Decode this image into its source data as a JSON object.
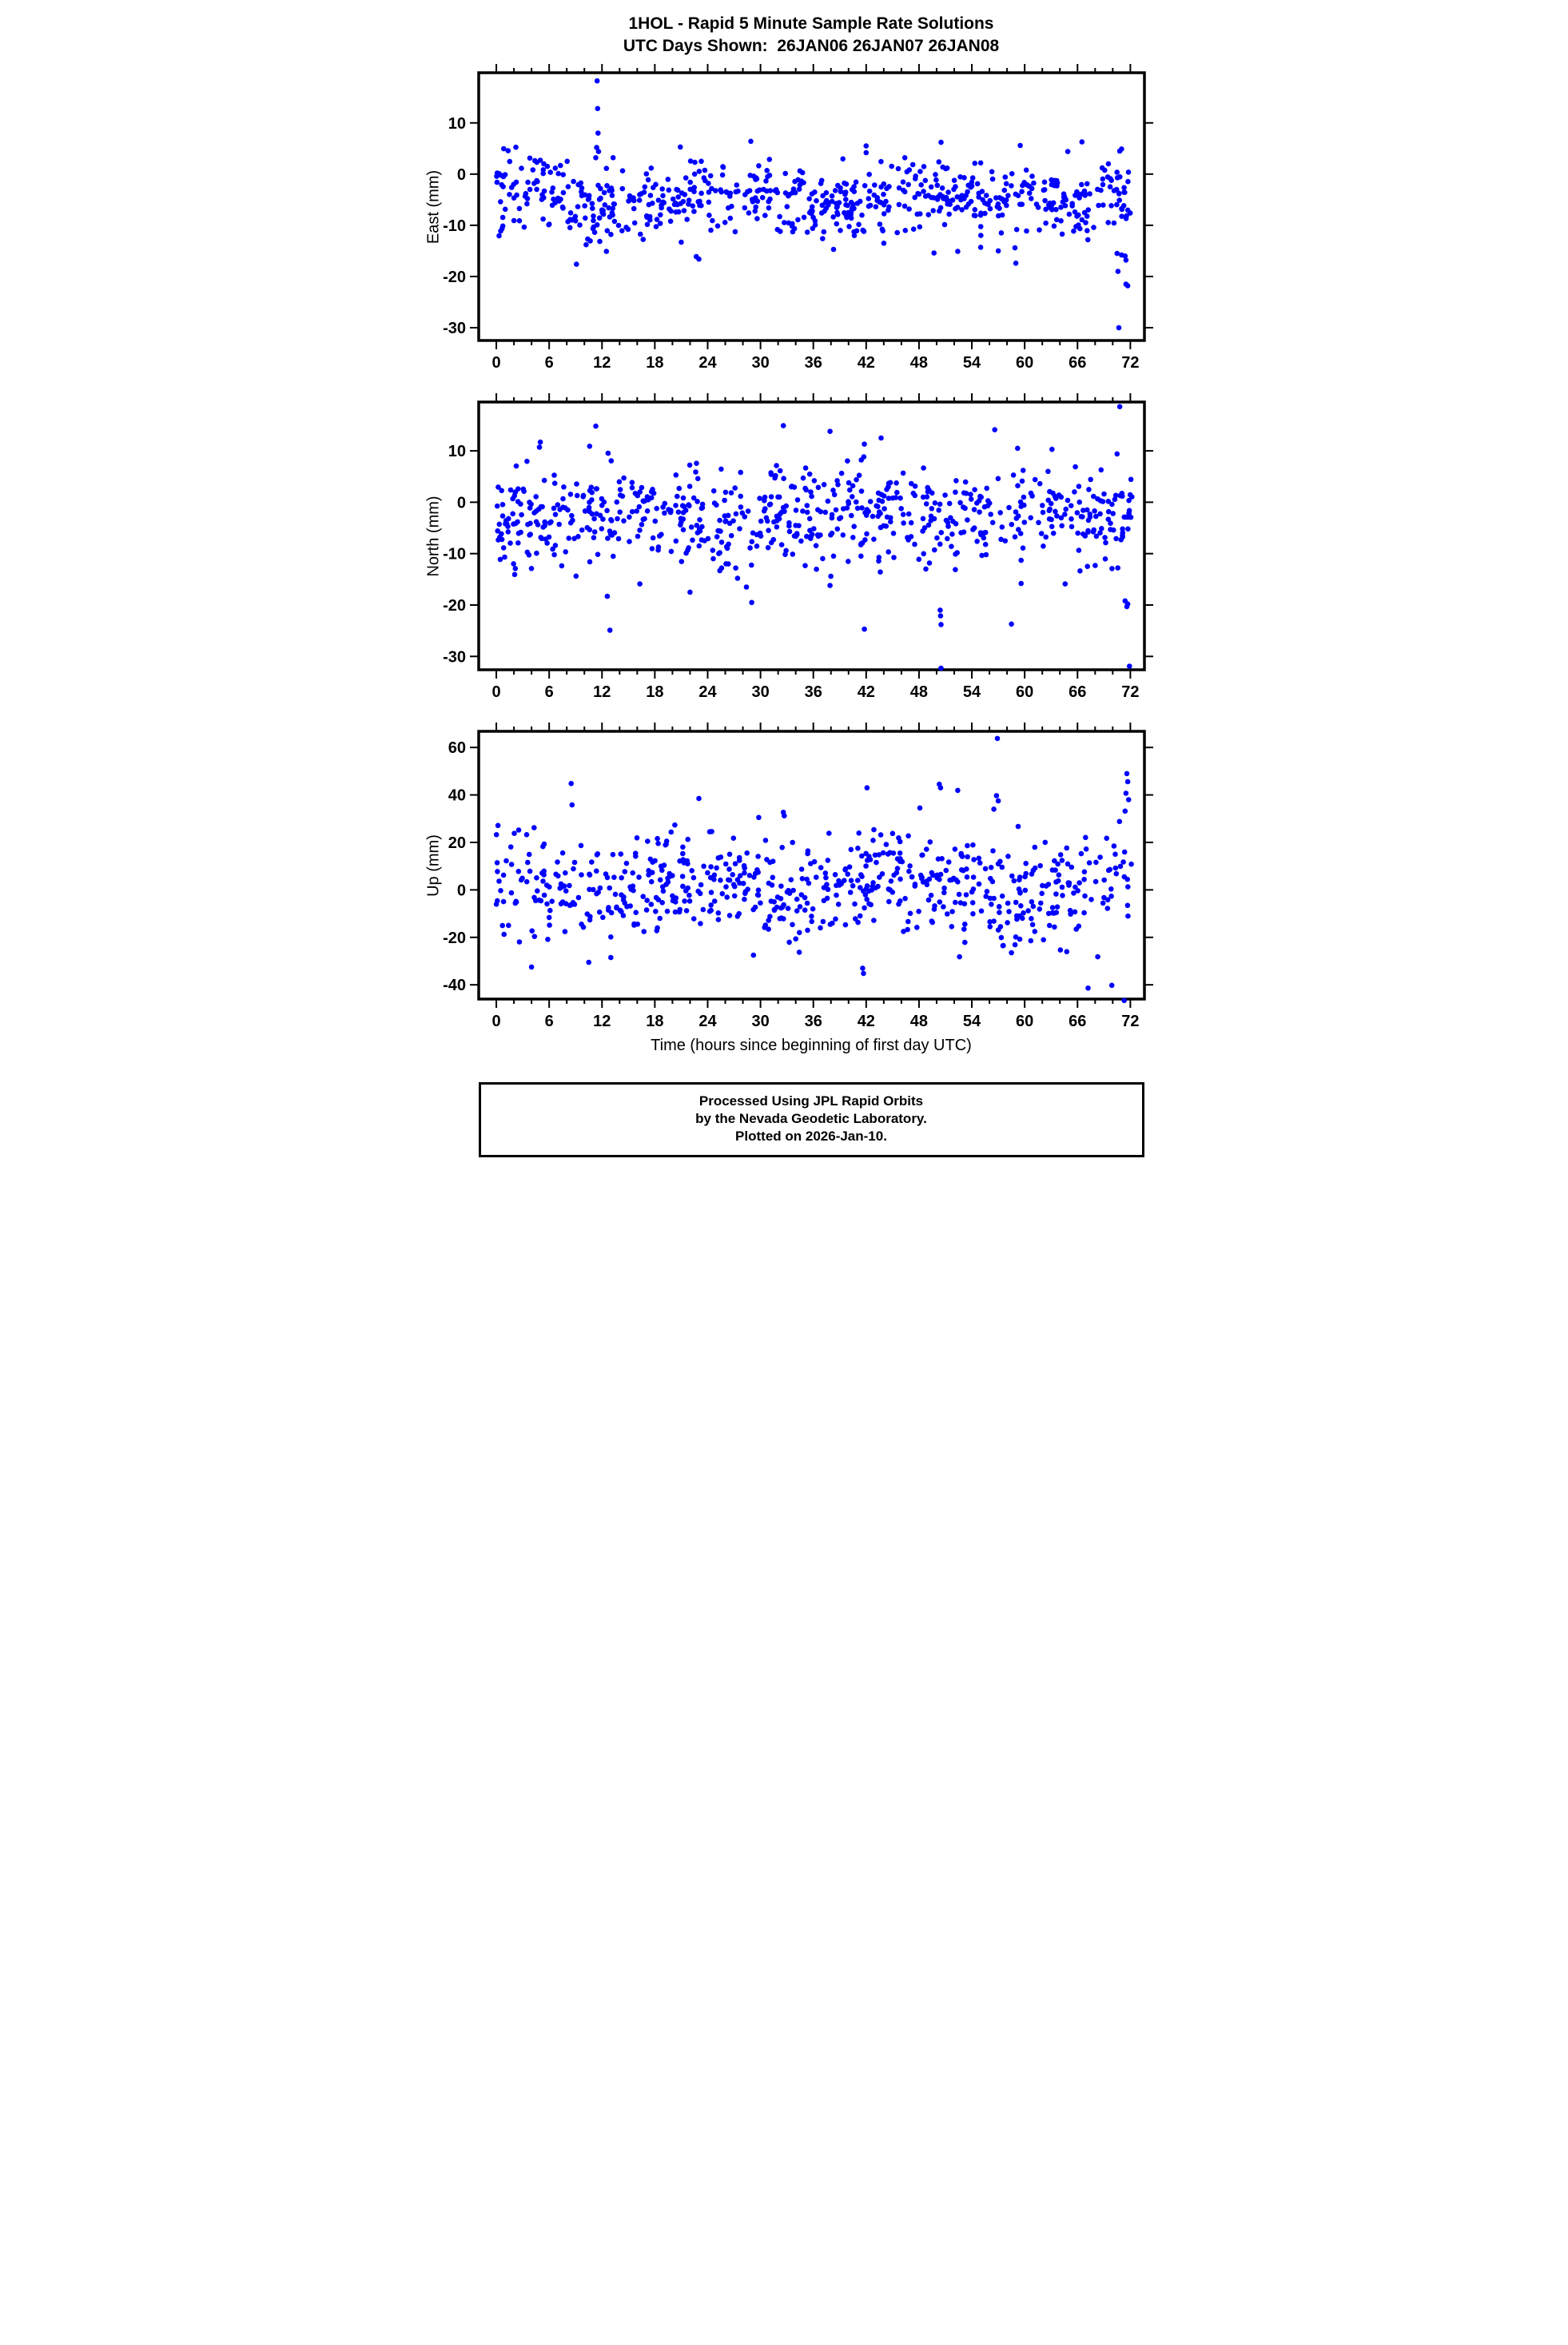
{
  "header": {
    "title": "1HOL - Rapid 5 Minute Sample Rate Solutions",
    "subtitle": "UTC Days Shown:  26JAN06 26JAN07 26JAN08"
  },
  "x_axis": {
    "label": "Time (hours since beginning of first day UTC)",
    "min": -2,
    "max": 73.6,
    "major_ticks": [
      0,
      6,
      12,
      18,
      24,
      30,
      36,
      42,
      48,
      54,
      60,
      66,
      72
    ],
    "minor_step": 2,
    "minor_start": 0,
    "minor_end": 72
  },
  "style": {
    "marker_color": "#0000ff",
    "marker_radius": 3.3,
    "axis_color": "#000000",
    "background": "#ffffff"
  },
  "chart_data": [
    {
      "type": "scatter",
      "name": "east",
      "ylabel": "East (mm)",
      "ylim": [
        -32.5,
        19.8
      ],
      "yticks": [
        10,
        0,
        -10,
        -20,
        -30
      ],
      "cloud": {
        "n": 660,
        "seed": 7,
        "x_start": 0,
        "x_span": 72.2,
        "mean": -4.8,
        "sd": 3.5,
        "clip": [
          -13.5,
          6.5
        ],
        "wave": {
          "amp": 1.6,
          "period": 24,
          "phase": 1.2
        }
      },
      "outliers": [
        [
          0.1,
          0.2
        ],
        [
          0.3,
          0.1
        ],
        [
          0.5,
          -0.2
        ],
        [
          0.8,
          -0.5
        ],
        [
          1.0,
          -0.1
        ],
        [
          4.6,
          2.3
        ],
        [
          5.0,
          2.7
        ],
        [
          5.4,
          2.0
        ],
        [
          5.8,
          1.5
        ],
        [
          11.45,
          18.2
        ],
        [
          11.5,
          12.8
        ],
        [
          11.55,
          8.0
        ],
        [
          11.4,
          5.2
        ],
        [
          11.6,
          4.4
        ],
        [
          11.3,
          3.2
        ],
        [
          9.1,
          -17.6
        ],
        [
          10.2,
          -13.8
        ],
        [
          12.5,
          -15.1
        ],
        [
          20.9,
          5.3
        ],
        [
          28.9,
          6.4
        ],
        [
          42.0,
          5.5
        ],
        [
          50.5,
          6.2
        ],
        [
          59.5,
          5.6
        ],
        [
          66.5,
          6.3
        ],
        [
          71.0,
          4.9
        ],
        [
          70.8,
          4.5
        ],
        [
          64.9,
          4.4
        ],
        [
          21.0,
          -13.3
        ],
        [
          22.7,
          -16.1
        ],
        [
          23.0,
          -16.6
        ],
        [
          38.3,
          -14.7
        ],
        [
          44.0,
          -13.5
        ],
        [
          49.7,
          -15.4
        ],
        [
          52.4,
          -15.1
        ],
        [
          55.0,
          -14.3
        ],
        [
          57.0,
          -15.0
        ],
        [
          58.9,
          -14.4
        ],
        [
          59.0,
          -17.4
        ],
        [
          70.5,
          -15.5
        ],
        [
          71.0,
          -15.8
        ],
        [
          71.4,
          -16.0
        ],
        [
          71.5,
          -16.8
        ],
        [
          70.6,
          -19.0
        ],
        [
          71.5,
          -21.5
        ],
        [
          71.7,
          -21.8
        ],
        [
          70.7,
          -30.0
        ]
      ]
    },
    {
      "type": "scatter",
      "name": "north",
      "ylabel": "North (mm)",
      "ylim": [
        -32.6,
        19.5
      ],
      "yticks": [
        10,
        0,
        -10,
        -20,
        -30
      ],
      "cloud": {
        "n": 680,
        "seed": 13,
        "x_start": 0,
        "x_span": 72.2,
        "mean": -3.0,
        "sd": 4.8,
        "clip": [
          -15.2,
          9.6
        ],
        "wave": {
          "amp": 1.4,
          "period": 24,
          "phase": 4.0
        }
      },
      "outliers": [
        [
          70.8,
          18.6
        ],
        [
          11.3,
          14.8
        ],
        [
          32.6,
          14.9
        ],
        [
          37.9,
          13.8
        ],
        [
          56.6,
          14.1
        ],
        [
          43.7,
          12.5
        ],
        [
          41.8,
          11.3
        ],
        [
          5.0,
          11.7
        ],
        [
          4.9,
          10.7
        ],
        [
          10.6,
          10.9
        ],
        [
          59.2,
          10.5
        ],
        [
          63.1,
          10.3
        ],
        [
          70.5,
          9.4
        ],
        [
          12.9,
          -24.9
        ],
        [
          12.6,
          -18.3
        ],
        [
          16.3,
          -15.9
        ],
        [
          22.0,
          -17.5
        ],
        [
          28.4,
          -16.5
        ],
        [
          29.0,
          -19.5
        ],
        [
          37.9,
          -16.2
        ],
        [
          41.8,
          -24.7
        ],
        [
          50.4,
          -21.0
        ],
        [
          50.45,
          -22.1
        ],
        [
          50.5,
          -23.8
        ],
        [
          50.5,
          -32.3
        ],
        [
          58.5,
          -23.7
        ],
        [
          59.6,
          -15.8
        ],
        [
          64.6,
          -15.9
        ],
        [
          71.4,
          -19.2
        ],
        [
          71.7,
          -19.8
        ],
        [
          71.6,
          -20.3
        ],
        [
          71.9,
          -31.9
        ]
      ]
    },
    {
      "type": "scatter",
      "name": "up",
      "ylabel": "Up (mm)",
      "ylim": [
        -46,
        66.8
      ],
      "yticks": [
        60,
        40,
        20,
        0,
        -20,
        -40
      ],
      "cloud": {
        "n": 650,
        "seed": 21,
        "x_start": 0,
        "x_span": 72.2,
        "mean": 1.5,
        "sd": 11.5,
        "clip": [
          -27,
          29
        ],
        "wave": {
          "amp": 4,
          "period": 24,
          "phase": 2.2
        }
      },
      "outliers": [
        [
          56.9,
          63.8
        ],
        [
          71.6,
          49.0
        ],
        [
          8.5,
          44.8
        ],
        [
          50.3,
          44.5
        ],
        [
          50.45,
          43.0
        ],
        [
          42.1,
          43.0
        ],
        [
          52.4,
          41.9
        ],
        [
          71.7,
          45.6
        ],
        [
          71.5,
          40.7
        ],
        [
          56.8,
          39.7
        ],
        [
          71.8,
          38.0
        ],
        [
          23.0,
          38.5
        ],
        [
          57.0,
          37.5
        ],
        [
          8.6,
          35.8
        ],
        [
          48.1,
          34.5
        ],
        [
          56.5,
          34.0
        ],
        [
          71.4,
          33.2
        ],
        [
          32.6,
          32.7
        ],
        [
          32.7,
          31.2
        ],
        [
          29.8,
          30.5
        ],
        [
          4.0,
          -32.5
        ],
        [
          10.5,
          -30.5
        ],
        [
          13.0,
          -28.5
        ],
        [
          29.2,
          -27.5
        ],
        [
          41.6,
          -33.0
        ],
        [
          41.7,
          -35.2
        ],
        [
          52.6,
          -28.2
        ],
        [
          58.5,
          -26.5
        ],
        [
          68.3,
          -28.2
        ],
        [
          67.2,
          -41.4
        ],
        [
          69.9,
          -40.2
        ],
        [
          71.3,
          -46.6
        ]
      ]
    }
  ],
  "footer": {
    "line1": "Processed Using JPL Rapid Orbits",
    "line2": "by the Nevada Geodetic Laboratory.",
    "line3": "Plotted on 2026-Jan-10."
  }
}
